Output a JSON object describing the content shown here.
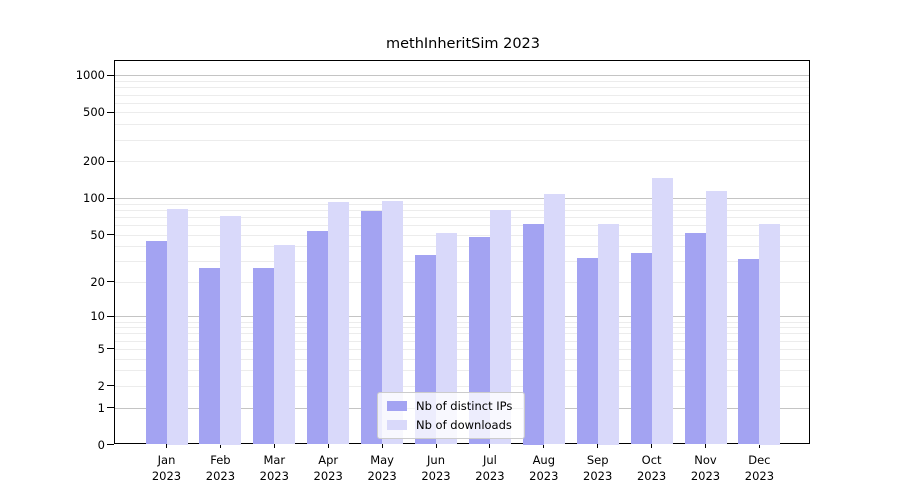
{
  "chart_data": {
    "type": "bar",
    "title": "methInheritSim 2023",
    "categories": [
      {
        "month": "Jan",
        "year": "2023"
      },
      {
        "month": "Feb",
        "year": "2023"
      },
      {
        "month": "Mar",
        "year": "2023"
      },
      {
        "month": "Apr",
        "year": "2023"
      },
      {
        "month": "May",
        "year": "2023"
      },
      {
        "month": "Jun",
        "year": "2023"
      },
      {
        "month": "Jul",
        "year": "2023"
      },
      {
        "month": "Aug",
        "year": "2023"
      },
      {
        "month": "Sep",
        "year": "2023"
      },
      {
        "month": "Oct",
        "year": "2023"
      },
      {
        "month": "Nov",
        "year": "2023"
      },
      {
        "month": "Dec",
        "year": "2023"
      }
    ],
    "series": [
      {
        "name": "Nb of distinct IPs",
        "color": "#a3a3f2",
        "values": [
          44,
          26,
          26,
          53,
          78,
          34,
          48,
          61,
          32,
          35,
          51,
          31
        ]
      },
      {
        "name": "Nb of downloads",
        "color": "#d9d9fa",
        "values": [
          82,
          71,
          41,
          93,
          95,
          51,
          80,
          108,
          61,
          145,
          115,
          61
        ]
      }
    ],
    "y_axis": {
      "scale": "log10(value+1)",
      "ticks": [
        1000,
        500,
        200,
        100,
        50,
        20,
        10,
        5,
        2,
        1,
        0
      ],
      "major_gridlines": [
        1,
        10,
        100,
        1000
      ],
      "minor_gridline_multipliers": [
        2,
        3,
        4,
        5,
        6,
        7,
        8,
        9
      ],
      "minor_gridline_decades": [
        1,
        10,
        100
      ]
    },
    "legend": {
      "position": "bottom-center"
    },
    "colors": {
      "major_grid": "#c4c4c4",
      "minor_grid": "#ececec",
      "axis": "#000000",
      "legend_border": "#cccccc"
    }
  }
}
